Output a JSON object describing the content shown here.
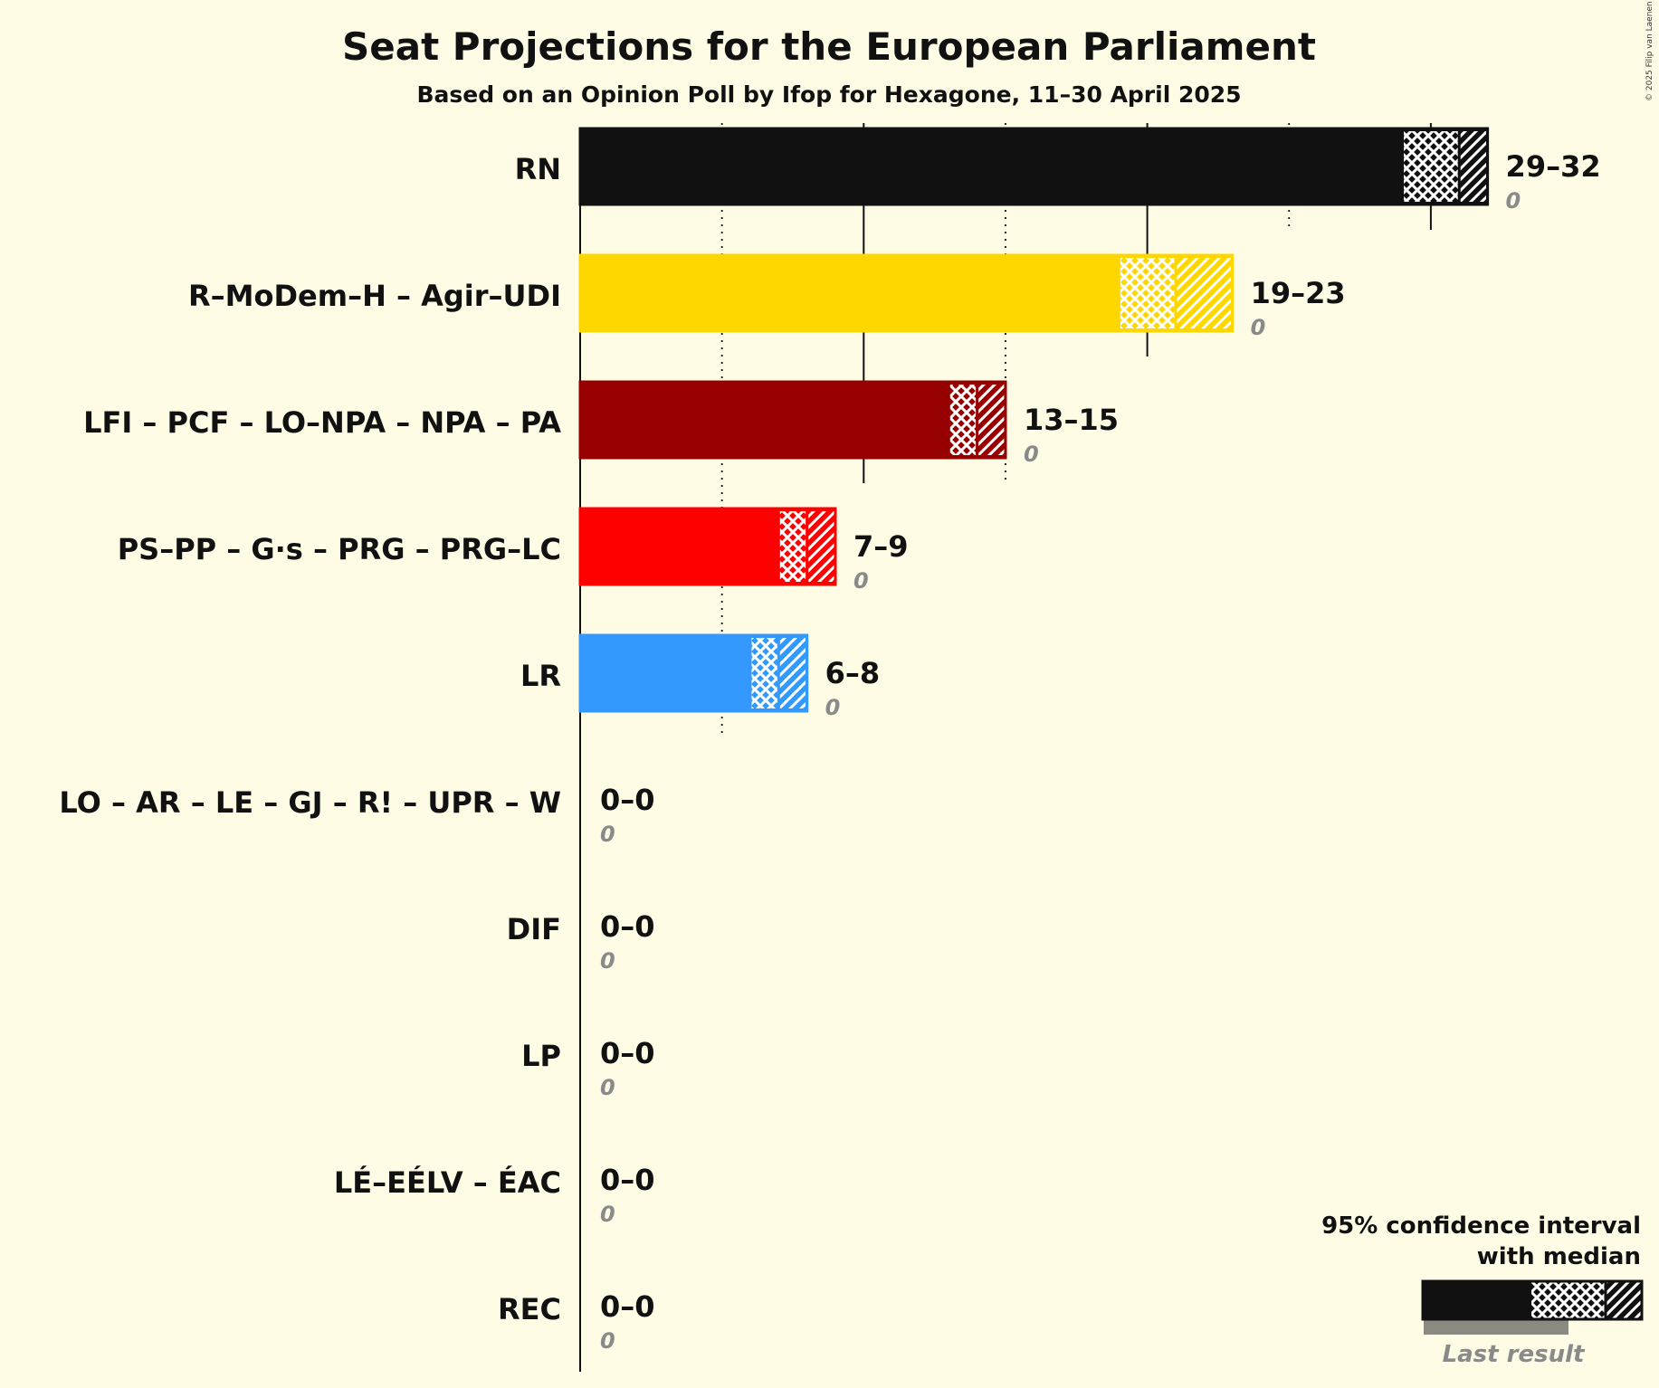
{
  "chart_data": {
    "type": "bar",
    "orientation": "horizontal",
    "title": "Seat Projections for the European Parliament",
    "subtitle": "Based on an Opinion Poll by Ifop for Hexagone, 11–30 April 2025",
    "copyright": "© 2025 Filip van Laenen",
    "xlim": [
      0,
      35
    ],
    "grid": true,
    "legend_position": "bottom-right",
    "legend": {
      "ci_label_line1": "95% confidence interval",
      "ci_label_line2": "with median",
      "last_result_label": "Last result"
    },
    "parties": [
      {
        "name": "RN",
        "low": 29,
        "median": 31,
        "high": 32,
        "range_label": "29–32",
        "last_result": 0,
        "last_label": "0",
        "color": "#111111",
        "hatch_color": "#FFFFFF"
      },
      {
        "name": "R–MoDem–H – Agir–UDI",
        "low": 19,
        "median": 21,
        "high": 23,
        "range_label": "19–23",
        "last_result": 0,
        "last_label": "0",
        "color": "#FFD700",
        "hatch_color": "#FFFFFF"
      },
      {
        "name": "LFI – PCF – LO–NPA – NPA – PA",
        "low": 13,
        "median": 14,
        "high": 15,
        "range_label": "13–15",
        "last_result": 0,
        "last_label": "0",
        "color": "#960000",
        "hatch_color": "#FFFFFF"
      },
      {
        "name": "PS–PP – G·s – PRG – PRG–LC",
        "low": 7,
        "median": 8,
        "high": 9,
        "range_label": "7–9",
        "last_result": 0,
        "last_label": "0",
        "color": "#FF0000",
        "hatch_color": "#FFFFFF"
      },
      {
        "name": "LR",
        "low": 6,
        "median": 7,
        "high": 8,
        "range_label": "6–8",
        "last_result": 0,
        "last_label": "0",
        "color": "#3399FF",
        "hatch_color": "#FFFFFF"
      },
      {
        "name": "LO – AR – LE – GJ – R! – UPR – W",
        "low": 0,
        "median": 0,
        "high": 0,
        "range_label": "0–0",
        "last_result": 0,
        "last_label": "0",
        "color": "#111111",
        "hatch_color": "#FFFFFF"
      },
      {
        "name": "DIF",
        "low": 0,
        "median": 0,
        "high": 0,
        "range_label": "0–0",
        "last_result": 0,
        "last_label": "0",
        "color": "#111111",
        "hatch_color": "#FFFFFF"
      },
      {
        "name": "LP",
        "low": 0,
        "median": 0,
        "high": 0,
        "range_label": "0–0",
        "last_result": 0,
        "last_label": "0",
        "color": "#111111",
        "hatch_color": "#FFFFFF"
      },
      {
        "name": "LÉ–EÉLV – ÉAC",
        "low": 0,
        "median": 0,
        "high": 0,
        "range_label": "0–0",
        "last_result": 0,
        "last_label": "0",
        "color": "#111111",
        "hatch_color": "#FFFFFF"
      },
      {
        "name": "REC",
        "low": 0,
        "median": 0,
        "high": 0,
        "range_label": "0–0",
        "last_result": 0,
        "last_label": "0",
        "color": "#111111",
        "hatch_color": "#FFFFFF"
      }
    ]
  }
}
